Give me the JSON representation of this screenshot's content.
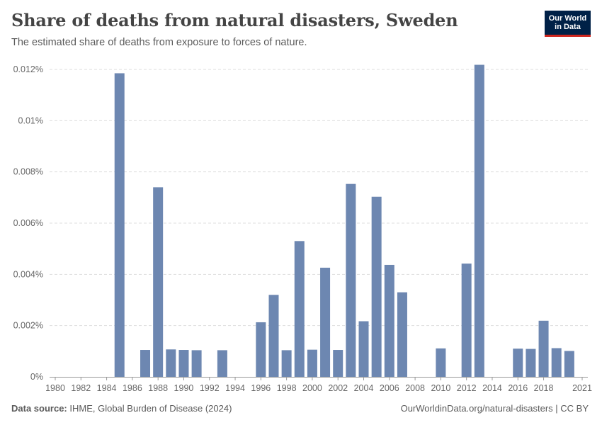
{
  "header": {
    "title": "Share of deaths from natural disasters, Sweden",
    "subtitle": "The estimated share of deaths from exposure to forces of nature."
  },
  "logo": {
    "line1": "Our World",
    "line2": "in Data"
  },
  "footer": {
    "source_label": "Data source:",
    "source_text": "IHME, Global Burden of Disease (2024)",
    "link_text": "OurWorldinData.org/natural-disasters | CC BY"
  },
  "colors": {
    "bar": "#6d87b1",
    "grid": "#dddddd",
    "axis": "#999999"
  },
  "chart_data": {
    "type": "bar",
    "title": "Share of deaths from natural disasters, Sweden",
    "ylabel": "",
    "xlabel": "",
    "ylim": [
      0,
      0.012
    ],
    "y_ticks": [
      0,
      0.002,
      0.004,
      0.006,
      0.008,
      0.01,
      0.012
    ],
    "y_tick_labels": [
      "0%",
      "0.002%",
      "0.004%",
      "0.006%",
      "0.008%",
      "0.01%",
      "0.012%"
    ],
    "x_ticks": [
      1980,
      1982,
      1984,
      1986,
      1988,
      1990,
      1992,
      1994,
      1996,
      1998,
      2000,
      2002,
      2004,
      2006,
      2008,
      2010,
      2012,
      2014,
      2016,
      2018,
      2021
    ],
    "x_range": [
      1980,
      2021
    ],
    "units": "%",
    "x": [
      1985,
      1987,
      1988,
      1989,
      1990,
      1991,
      1993,
      1996,
      1997,
      1998,
      1999,
      2000,
      2001,
      2002,
      2003,
      2004,
      2005,
      2006,
      2007,
      2010,
      2012,
      2013,
      2016,
      2017,
      2018,
      2019,
      2020
    ],
    "values": [
      0.01185,
      0.00105,
      0.0074,
      0.00107,
      0.00105,
      0.00104,
      0.00104,
      0.00213,
      0.0032,
      0.00104,
      0.0053,
      0.00106,
      0.00426,
      0.00105,
      0.00753,
      0.00217,
      0.00703,
      0.00437,
      0.0033,
      0.00111,
      0.00442,
      0.01218,
      0.0011,
      0.00109,
      0.00219,
      0.00112,
      0.00101
    ]
  }
}
